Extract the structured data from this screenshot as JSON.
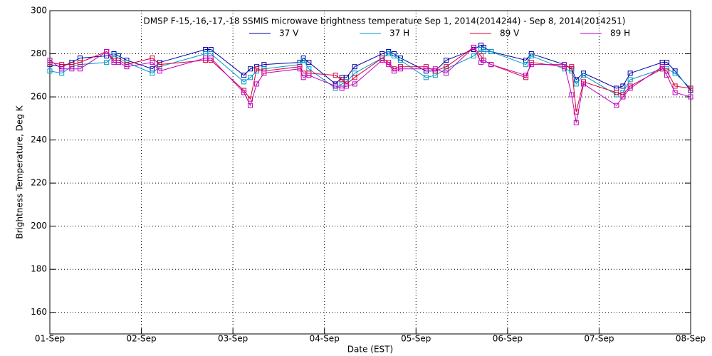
{
  "chart_data": {
    "type": "line",
    "title": "DMSP F-15,-16,-17,-18 SSMIS microwave brightness temperature Sep  1, 2014(2014244) - Sep  8, 2014(2014251)",
    "x_label": "Date (EST)",
    "y_label": "Brightness Temperature, Deg K",
    "xlim": [
      0,
      7
    ],
    "xticks": [
      {
        "value": 0,
        "label": "01-Sep"
      },
      {
        "value": 1,
        "label": "02-Sep"
      },
      {
        "value": 2,
        "label": "03-Sep"
      },
      {
        "value": 3,
        "label": "04-Sep"
      },
      {
        "value": 4,
        "label": "05-Sep"
      },
      {
        "value": 5,
        "label": "06-Sep"
      },
      {
        "value": 6,
        "label": "07-Sep"
      },
      {
        "value": 7,
        "label": "08-Sep"
      }
    ],
    "ylim": [
      150,
      300
    ],
    "yticks": [
      160,
      180,
      200,
      220,
      240,
      260,
      280,
      300
    ],
    "grid": true,
    "x": [
      0.0,
      0.13,
      0.24,
      0.33,
      0.62,
      0.7,
      0.75,
      0.84,
      1.12,
      1.2,
      1.7,
      1.76,
      2.12,
      2.19,
      2.26,
      2.34,
      2.73,
      2.77,
      2.83,
      3.12,
      3.19,
      3.24,
      3.33,
      3.63,
      3.7,
      3.76,
      3.83,
      4.11,
      4.21,
      4.33,
      4.63,
      4.71,
      4.74,
      4.82,
      5.2,
      5.26,
      5.62,
      5.7,
      5.75,
      5.83,
      6.19,
      6.26,
      6.34,
      6.69,
      6.74,
      6.83,
      7.0
    ],
    "series": [
      {
        "name": "37 V",
        "color": "#0000a8",
        "values": [
          275,
          274,
          276,
          278,
          279,
          280,
          279,
          277,
          273,
          276,
          282,
          282,
          270,
          273,
          274,
          275,
          276,
          278,
          276,
          266,
          269,
          269,
          274,
          280,
          281,
          280,
          278,
          272,
          272,
          277,
          282,
          284,
          283,
          281,
          277,
          280,
          275,
          273,
          268,
          271,
          264,
          265,
          271,
          276,
          276,
          272,
          263
        ]
      },
      {
        "name": "37 H",
        "color": "#0098c8",
        "values": [
          272,
          271,
          274,
          275,
          276,
          279,
          278,
          276,
          271,
          274,
          280,
          280,
          267,
          269,
          272,
          273,
          275,
          277,
          273,
          264,
          266,
          267,
          271,
          278,
          280,
          279,
          277,
          269,
          270,
          273,
          279,
          282,
          281,
          281,
          275,
          279,
          273,
          272,
          266,
          270,
          261,
          262,
          268,
          273,
          273,
          271,
          264
        ]
      },
      {
        "name": "89 V",
        "color": "#d80030",
        "values": [
          276,
          275,
          275,
          276,
          281,
          277,
          277,
          275,
          278,
          275,
          277,
          277,
          263,
          259,
          273,
          272,
          274,
          271,
          271,
          270,
          268,
          266,
          269,
          278,
          276,
          273,
          274,
          274,
          272,
          274,
          283,
          279,
          277,
          275,
          269,
          276,
          274,
          274,
          253,
          267,
          262,
          261,
          265,
          273,
          272,
          265,
          264
        ]
      },
      {
        "name": "89 H",
        "color": "#c000c0",
        "values": [
          277,
          273,
          273,
          273,
          281,
          276,
          276,
          274,
          276,
          272,
          278,
          278,
          262,
          256,
          266,
          271,
          273,
          269,
          270,
          265,
          264,
          265,
          266,
          277,
          275,
          272,
          273,
          273,
          273,
          271,
          283,
          276,
          277,
          275,
          270,
          275,
          275,
          261,
          248,
          266,
          256,
          260,
          264,
          274,
          270,
          262,
          260
        ]
      }
    ]
  }
}
